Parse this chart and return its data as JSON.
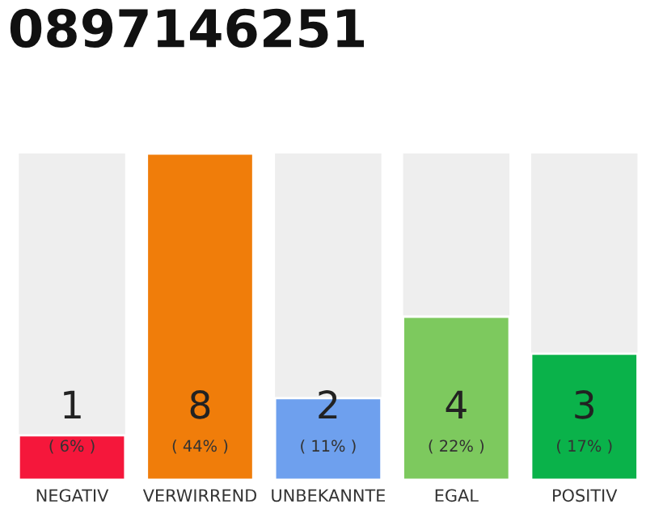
{
  "chart_data": {
    "type": "bar",
    "title": "0897146251",
    "categories": [
      "NEGATIV",
      "VERWIRREND",
      "UNBEKANNTE",
      "EGAL",
      "POSITIV"
    ],
    "values": [
      6,
      44,
      11,
      22,
      17
    ],
    "colors": [
      "#f5173b",
      "#f07d0a",
      "#6ea0ee",
      "#7dc95e",
      "#0ab24a"
    ],
    "value_labels": [
      "( 6% )",
      "( 44% )",
      "( 11% )",
      "( 22% )",
      "( 17% )"
    ],
    "annotations": [
      "1",
      "8",
      "2",
      "4",
      "3"
    ],
    "grid": false,
    "legend": false,
    "tick_labels": "x"
  }
}
